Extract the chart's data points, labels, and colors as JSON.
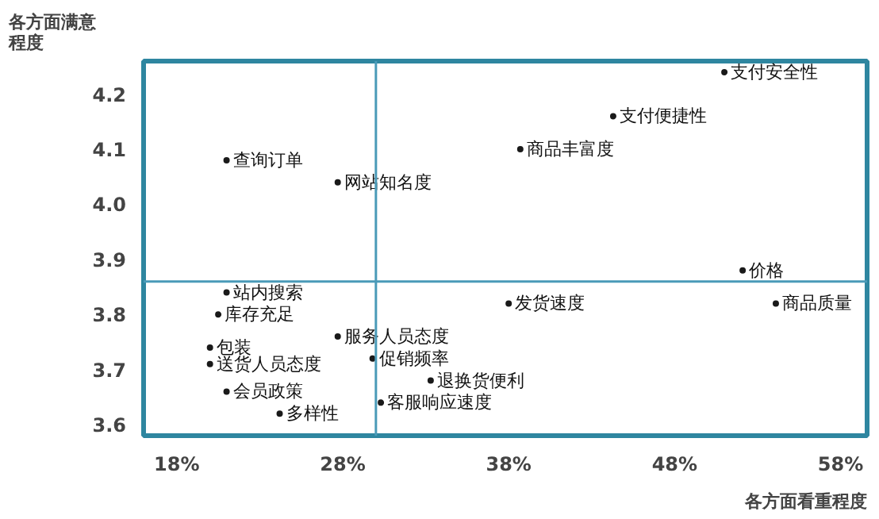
{
  "chart_data": {
    "type": "scatter",
    "xlabel": "各方面看重程度",
    "ylabel": "各方面满意程度",
    "grid": false,
    "marker": "circle",
    "color": "#1a1a1a",
    "xlim": [
      16,
      59.6
    ],
    "ylim": [
      3.58,
      4.26
    ],
    "xticks": [
      {
        "value": 18,
        "label": "18%"
      },
      {
        "value": 28,
        "label": "28%"
      },
      {
        "value": 38,
        "label": "38%"
      },
      {
        "value": 48,
        "label": "48%"
      },
      {
        "value": 58,
        "label": "58%"
      }
    ],
    "yticks": [
      3.6,
      3.7,
      3.8,
      3.9,
      {
        "value": 4.0,
        "label": "4.0"
      },
      4.1,
      4.2
    ],
    "ref_lines": [
      {
        "axis": "x",
        "value": 30,
        "color": "#4a9ab8"
      },
      {
        "axis": "y",
        "value": 3.86,
        "color": "#4a9ab8"
      }
    ],
    "x": [
      51.0,
      44.3,
      38.7,
      21.0,
      27.7,
      52.1,
      54.1,
      38.0,
      21.0,
      20.5,
      27.7,
      20.0,
      29.8,
      20.0,
      33.3,
      21.0,
      30.3,
      24.2
    ],
    "values": [
      4.24,
      4.16,
      4.1,
      4.08,
      4.04,
      3.88,
      3.82,
      3.82,
      3.84,
      3.8,
      3.76,
      3.74,
      3.72,
      3.71,
      3.68,
      3.66,
      3.64,
      3.62
    ],
    "annotations": [
      {
        "text": "支付安全性",
        "x": 51.0,
        "y": 4.24
      },
      {
        "text": "支付便捷性",
        "x": 44.3,
        "y": 4.16
      },
      {
        "text": "商品丰富度",
        "x": 38.7,
        "y": 4.1
      },
      {
        "text": "查询订单",
        "x": 21.0,
        "y": 4.08
      },
      {
        "text": "网站知名度",
        "x": 27.7,
        "y": 4.04
      },
      {
        "text": "价格",
        "x": 52.1,
        "y": 3.88
      },
      {
        "text": "商品质量",
        "x": 54.1,
        "y": 3.82
      },
      {
        "text": "发货速度",
        "x": 38.0,
        "y": 3.82
      },
      {
        "text": "站内搜索",
        "x": 21.0,
        "y": 3.84
      },
      {
        "text": "库存充足",
        "x": 20.5,
        "y": 3.8
      },
      {
        "text": "服务人员态度",
        "x": 27.7,
        "y": 3.76
      },
      {
        "text": "包装",
        "x": 20.0,
        "y": 3.74
      },
      {
        "text": "促销频率",
        "x": 29.8,
        "y": 3.72
      },
      {
        "text": "送货人员态度",
        "x": 20.0,
        "y": 3.71
      },
      {
        "text": "退换货便利",
        "x": 33.3,
        "y": 3.68
      },
      {
        "text": "会员政策",
        "x": 21.0,
        "y": 3.66
      },
      {
        "text": "客服响应速度",
        "x": 30.3,
        "y": 3.64
      },
      {
        "text": "多样性",
        "x": 24.2,
        "y": 3.62
      }
    ]
  }
}
